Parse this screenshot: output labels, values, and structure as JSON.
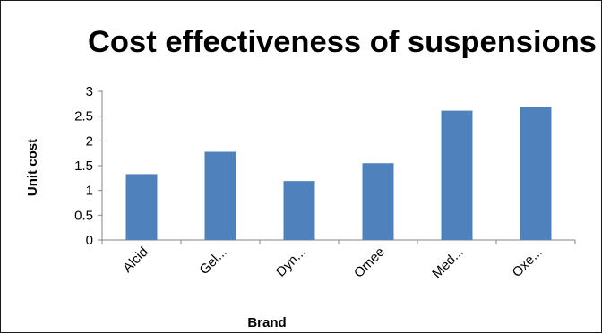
{
  "chart_data": {
    "type": "bar",
    "title": "Cost effectiveness of suspensions",
    "xlabel": "Brand",
    "ylabel": "Unit cost",
    "categories": [
      "Alcid",
      "Gel...",
      "Dyn...",
      "Omee",
      "Med...",
      "Oxe..."
    ],
    "values": [
      1.33,
      1.78,
      1.19,
      1.55,
      2.61,
      2.68
    ],
    "ylim": [
      0,
      3
    ],
    "yticks": [
      0,
      0.5,
      1,
      1.5,
      2,
      2.5,
      3
    ],
    "ytick_labels": [
      "0",
      "0.5",
      "1",
      "1.5",
      "2",
      "2.5",
      "3"
    ],
    "grid": false,
    "legend": "none",
    "bar_color": "#4f81bd",
    "axis_color": "#868686"
  }
}
